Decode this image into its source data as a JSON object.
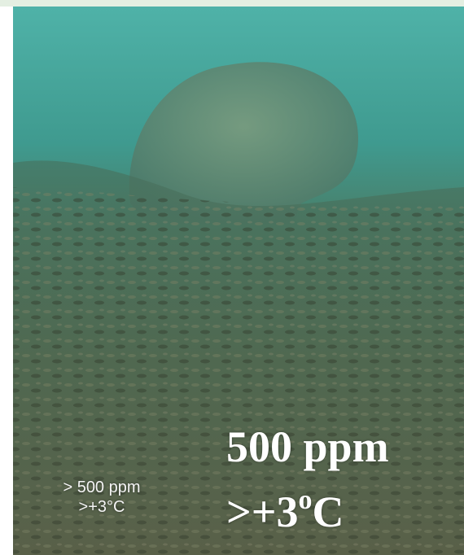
{
  "photo": {
    "small_label": {
      "line1": "> 500 ppm",
      "line2": ">+3°C"
    },
    "large_label": {
      "line1": "500 ppm",
      "line2": {
        "prefix": ">+3",
        "superscript": "o",
        "suffix": "C"
      }
    }
  }
}
